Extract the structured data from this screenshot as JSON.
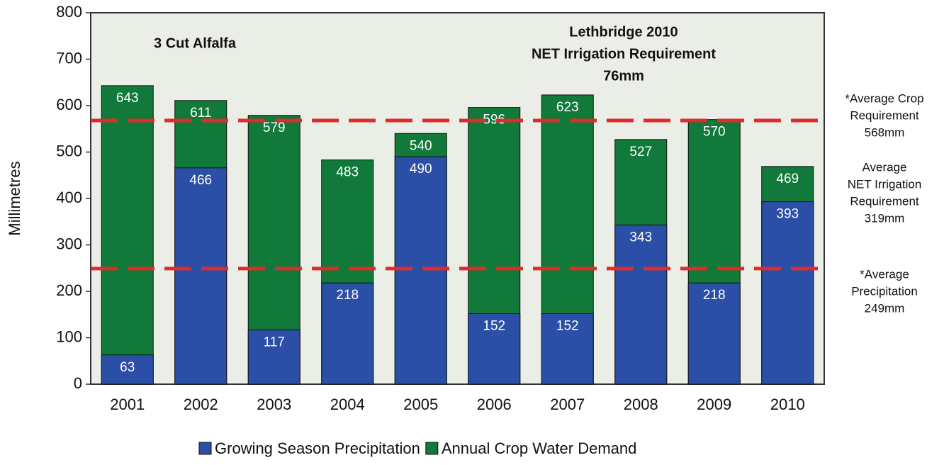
{
  "chart_data": {
    "type": "overlapped_bar",
    "y_label": "Millimetres",
    "categories": [
      "2001",
      "2002",
      "2003",
      "2004",
      "2005",
      "2006",
      "2007",
      "2008",
      "2009",
      "2010"
    ],
    "series": [
      {
        "name": "Annual Crop Water Demand",
        "color": "#117a3b",
        "values": [
          643,
          611,
          579,
          483,
          540,
          596,
          623,
          527,
          570,
          469
        ]
      },
      {
        "name": "Growing Season Precipitation",
        "color": "#2b4ea6",
        "values": [
          63,
          466,
          117,
          218,
          490,
          152,
          152,
          343,
          218,
          393
        ]
      }
    ],
    "legend_order": [
      1,
      0
    ],
    "ylim": [
      0,
      800
    ],
    "yticks": [
      0,
      100,
      200,
      300,
      400,
      500,
      600,
      700,
      800
    ],
    "annotations": [
      {
        "lines": [
          "3 Cut Alfalfa"
        ]
      },
      {
        "lines": [
          "Lethbridge 2010",
          "NET Irrigation Requirement",
          "76mm"
        ]
      }
    ],
    "reference_lines": [
      {
        "value": 568,
        "color": "#e32a2a",
        "lines": [
          "*Average Crop",
          "Requirement",
          "568mm"
        ]
      },
      {
        "value": 249,
        "color": "#e32a2a",
        "lines": [
          "*Average",
          "Precipitation",
          "249mm"
        ]
      }
    ],
    "side_notes": [
      {
        "lines": [
          "Average",
          "NET Irrigation",
          "Requirement",
          "319mm"
        ]
      }
    ]
  }
}
